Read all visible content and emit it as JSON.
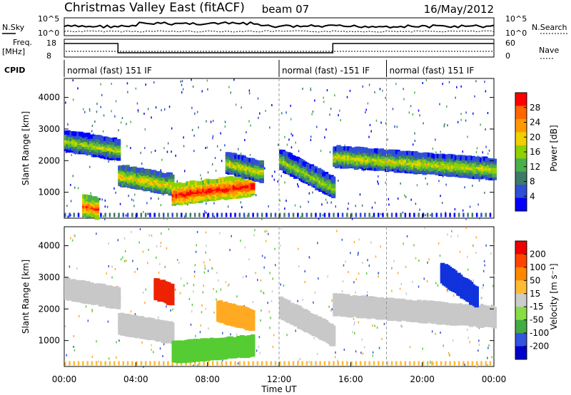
{
  "header": {
    "station": "Christmas Valley East (fitACF)",
    "beam": "beam 07",
    "date": "16/May/2012"
  },
  "top_panels": {
    "nsky_label": "N.Sky",
    "nsky_ticks": [
      "10^5",
      "10^0"
    ],
    "nsearch_label": "N.Search",
    "nsearch_ticks": [
      "10^5",
      "10^0"
    ],
    "freq_label_1": "Freq.",
    "freq_label_2": "[MHz]",
    "freq_ticks": [
      "18",
      "8"
    ],
    "nave_label": "Nave",
    "nave_ticks": [
      "60",
      "0"
    ],
    "cpid_label": "CPID"
  },
  "cpid_segments": [
    {
      "label": "normal (fast) 151 IF",
      "start_hour": 0,
      "end_hour": 12
    },
    {
      "label": "normal (fast) -151 IF",
      "start_hour": 12,
      "end_hour": 18
    },
    {
      "label": "normal (fast) 151 IF",
      "start_hour": 18,
      "end_hour": 24
    }
  ],
  "chart_data": [
    {
      "type": "heatmap",
      "name": "power",
      "ylabel": "Slant Range [km]",
      "xlabel": "Time UT",
      "xlim": [
        0,
        24
      ],
      "ylim": [
        180,
        4600
      ],
      "x_tick_labels": [
        "00:00",
        "04:00",
        "08:00",
        "12:00",
        "16:00",
        "20:00",
        "00:00"
      ],
      "y_tick_labels": [
        "1000",
        "2000",
        "3000",
        "4000"
      ],
      "colorbar_label": "Power [dB]",
      "colorbar_ticks": [
        "28",
        "24",
        "20",
        "16",
        "12",
        "8",
        "4"
      ],
      "colorbar_colors": [
        "#0000ff",
        "#2f4fd8",
        "#3e7a6a",
        "#4bb04b",
        "#90d000",
        "#f0d000",
        "#ff9900",
        "#ff6600",
        "#ff0000"
      ],
      "bands": [
        {
          "x": [
            0,
            3
          ],
          "y": [
            2700,
            2400
          ],
          "level": 0.55
        },
        {
          "x": [
            3,
            6
          ],
          "y": [
            1600,
            1300
          ],
          "level": 0.65
        },
        {
          "x": [
            6,
            10.5
          ],
          "y": [
            1000,
            1300
          ],
          "level": 0.95
        },
        {
          "x": [
            9,
            11
          ],
          "y": [
            2000,
            1700
          ],
          "level": 0.6
        },
        {
          "x": [
            12,
            15
          ],
          "y": [
            2100,
            1200
          ],
          "level": 0.55
        },
        {
          "x": [
            15,
            24
          ],
          "y": [
            2200,
            1800
          ],
          "level": 0.6
        },
        {
          "x": [
            1,
            1.8
          ],
          "y": [
            650,
            550
          ],
          "level": 0.85
        }
      ]
    },
    {
      "type": "heatmap",
      "name": "velocity",
      "ylabel": "Slant Range [km]",
      "xlabel": "Time UT",
      "xlim": [
        0,
        24
      ],
      "ylim": [
        180,
        4600
      ],
      "x_tick_labels": [
        "00:00",
        "04:00",
        "08:00",
        "12:00",
        "16:00",
        "20:00",
        "00:00"
      ],
      "y_tick_labels": [
        "1000",
        "2000",
        "3000",
        "4000"
      ],
      "colorbar_label": "Velocity [m s⁻¹]",
      "colorbar_ticks": [
        "200",
        "100",
        "50",
        "15",
        "-15",
        "-50",
        "-100",
        "-200"
      ],
      "colorbar_colors": [
        "#0000cc",
        "#3355dd",
        "#44aa44",
        "#88dd44",
        "#cccccc",
        "#ffbb33",
        "#ff8800",
        "#ff4400",
        "#ee0000"
      ],
      "bands": [
        {
          "x": [
            0,
            3
          ],
          "y": [
            2700,
            2400
          ],
          "level": "gray"
        },
        {
          "x": [
            3,
            6
          ],
          "y": [
            1600,
            1300
          ],
          "level": "gray"
        },
        {
          "x": [
            6,
            10.5
          ],
          "y": [
            700,
            900
          ],
          "level": "green"
        },
        {
          "x": [
            8.5,
            10.5
          ],
          "y": [
            2000,
            1700
          ],
          "level": "orange"
        },
        {
          "x": [
            12,
            15
          ],
          "y": [
            2100,
            1200
          ],
          "level": "gray"
        },
        {
          "x": [
            15,
            24
          ],
          "y": [
            2200,
            1800
          ],
          "level": "gray"
        },
        {
          "x": [
            21,
            23
          ],
          "y": [
            3200,
            2400
          ],
          "level": "blue"
        },
        {
          "x": [
            5,
            6
          ],
          "y": [
            2700,
            2500
          ],
          "level": "red"
        }
      ]
    }
  ]
}
